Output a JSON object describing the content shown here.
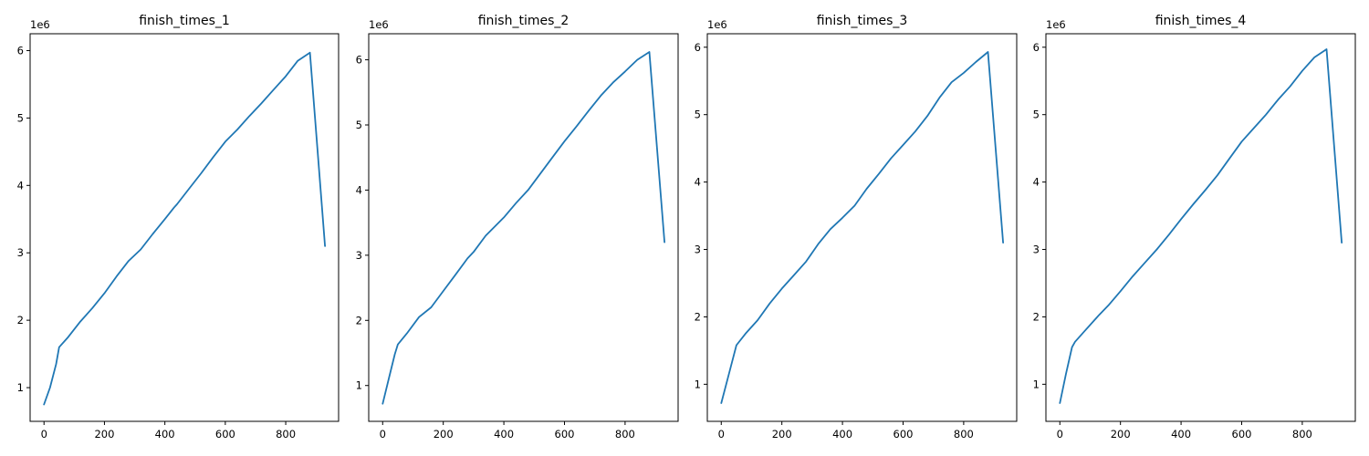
{
  "colors": {
    "line": "#1f77b4",
    "axes": "#000000",
    "background": "#ffffff"
  },
  "chart_data": [
    {
      "type": "line",
      "title": "finish_times_1",
      "xlabel": "",
      "ylabel": "",
      "y_offset_label": "1e6",
      "xlim": [
        -46,
        975
      ],
      "ylim": [
        0.5,
        6.25
      ],
      "x_ticks": [
        0,
        200,
        400,
        600,
        800
      ],
      "y_ticks": [
        1,
        2,
        3,
        4,
        5,
        6
      ],
      "grid": false,
      "series": [
        {
          "x": [
            0,
            20,
            40,
            50,
            80,
            120,
            160,
            200,
            240,
            280,
            320,
            360,
            400,
            430,
            440,
            480,
            520,
            560,
            600,
            640,
            680,
            720,
            760,
            800,
            840,
            880,
            930
          ],
          "y": [
            0.75,
            1.0,
            1.35,
            1.6,
            1.75,
            1.98,
            2.18,
            2.4,
            2.65,
            2.88,
            3.05,
            3.28,
            3.5,
            3.67,
            3.72,
            3.95,
            4.18,
            4.42,
            4.65,
            4.83,
            5.03,
            5.22,
            5.42,
            5.62,
            5.85,
            5.97,
            3.1
          ]
        }
      ]
    },
    {
      "type": "line",
      "title": "finish_times_2",
      "xlabel": "",
      "ylabel": "",
      "y_offset_label": "1e6",
      "xlim": [
        -46,
        975
      ],
      "ylim": [
        0.45,
        6.4
      ],
      "x_ticks": [
        0,
        200,
        400,
        600,
        800
      ],
      "y_ticks": [
        1,
        2,
        3,
        4,
        5,
        6
      ],
      "grid": false,
      "series": [
        {
          "x": [
            0,
            20,
            40,
            50,
            80,
            120,
            160,
            200,
            240,
            280,
            300,
            340,
            400,
            440,
            480,
            520,
            560,
            600,
            640,
            680,
            720,
            760,
            800,
            840,
            880,
            930
          ],
          "y": [
            0.72,
            1.1,
            1.48,
            1.63,
            1.8,
            2.05,
            2.2,
            2.45,
            2.7,
            2.95,
            3.05,
            3.3,
            3.58,
            3.8,
            4.0,
            4.25,
            4.5,
            4.75,
            4.98,
            5.22,
            5.45,
            5.65,
            5.82,
            6.0,
            6.12,
            3.2
          ]
        }
      ]
    },
    {
      "type": "line",
      "title": "finish_times_3",
      "xlabel": "",
      "ylabel": "",
      "y_offset_label": "1e6",
      "xlim": [
        -46,
        975
      ],
      "ylim": [
        0.45,
        6.2
      ],
      "x_ticks": [
        0,
        200,
        400,
        600,
        800
      ],
      "y_ticks": [
        1,
        2,
        3,
        4,
        5,
        6
      ],
      "grid": false,
      "series": [
        {
          "x": [
            0,
            25,
            50,
            80,
            120,
            160,
            200,
            240,
            280,
            320,
            360,
            400,
            440,
            480,
            520,
            560,
            600,
            640,
            680,
            720,
            760,
            800,
            840,
            880,
            930
          ],
          "y": [
            0.72,
            1.15,
            1.58,
            1.75,
            1.95,
            2.2,
            2.42,
            2.62,
            2.82,
            3.08,
            3.3,
            3.47,
            3.65,
            3.9,
            4.12,
            4.35,
            4.55,
            4.75,
            4.98,
            5.25,
            5.48,
            5.62,
            5.78,
            5.93,
            3.1
          ]
        }
      ]
    },
    {
      "type": "line",
      "title": "finish_times_4",
      "xlabel": "",
      "ylabel": "",
      "y_offset_label": "1e6",
      "xlim": [
        -46,
        975
      ],
      "ylim": [
        0.45,
        6.2
      ],
      "x_ticks": [
        0,
        200,
        400,
        600,
        800
      ],
      "y_ticks": [
        1,
        2,
        3,
        4,
        5,
        6
      ],
      "grid": false,
      "series": [
        {
          "x": [
            0,
            20,
            40,
            50,
            80,
            120,
            130,
            160,
            200,
            240,
            280,
            320,
            360,
            400,
            440,
            480,
            520,
            560,
            600,
            640,
            680,
            720,
            760,
            800,
            840,
            880,
            930
          ],
          "y": [
            0.72,
            1.15,
            1.55,
            1.63,
            1.78,
            1.98,
            2.03,
            2.17,
            2.38,
            2.6,
            2.8,
            3.0,
            3.22,
            3.45,
            3.67,
            3.88,
            4.1,
            4.35,
            4.6,
            4.8,
            5.0,
            5.22,
            5.42,
            5.65,
            5.85,
            5.97,
            3.1
          ]
        }
      ]
    }
  ]
}
